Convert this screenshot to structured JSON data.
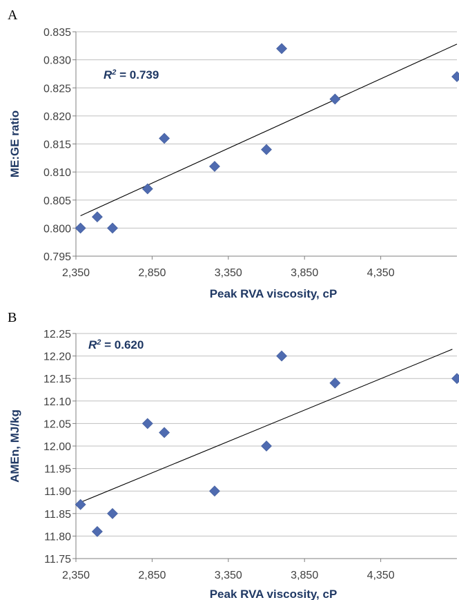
{
  "chart_data": [
    {
      "type": "scatter",
      "panel_label": "A",
      "xlabel": "Peak RVA viscosity, cP",
      "ylabel": "ME:GE ratio",
      "annotation": {
        "prefix": "R",
        "sup": "2",
        "value": " = 0.739"
      },
      "xlim": [
        2350,
        4850
      ],
      "ylim": [
        0.795,
        0.835
      ],
      "xticks": [
        2350,
        2850,
        3350,
        3850,
        4350
      ],
      "xtick_labels": [
        "2,350",
        "2,850",
        "3,350",
        "3,850",
        "4,350"
      ],
      "yticks": [
        0.795,
        0.8,
        0.805,
        0.81,
        0.815,
        0.82,
        0.825,
        0.83,
        0.835
      ],
      "ytick_labels": [
        "0.795",
        "0.800",
        "0.805",
        "0.810",
        "0.815",
        "0.820",
        "0.825",
        "0.830",
        "0.835"
      ],
      "grid": true,
      "points": [
        {
          "x": 2380,
          "y": 0.8
        },
        {
          "x": 2490,
          "y": 0.802
        },
        {
          "x": 2590,
          "y": 0.8
        },
        {
          "x": 2820,
          "y": 0.807
        },
        {
          "x": 2930,
          "y": 0.816
        },
        {
          "x": 3260,
          "y": 0.811
        },
        {
          "x": 3600,
          "y": 0.814
        },
        {
          "x": 3700,
          "y": 0.832
        },
        {
          "x": 4050,
          "y": 0.823
        },
        {
          "x": 4850,
          "y": 0.827
        }
      ],
      "trendline": {
        "x": [
          2380,
          4850
        ],
        "y": [
          0.8022,
          0.8328
        ]
      }
    },
    {
      "type": "scatter",
      "panel_label": "B",
      "xlabel": "Peak RVA viscosity, cP",
      "ylabel": "AMEn, MJ/kg",
      "annotation": {
        "prefix": "R",
        "sup": "2",
        "value": " = 0.620"
      },
      "xlim": [
        2350,
        4850
      ],
      "ylim": [
        11.75,
        12.25
      ],
      "xticks": [
        2350,
        2850,
        3350,
        3850,
        4350
      ],
      "xtick_labels": [
        "2,350",
        "2,850",
        "3,350",
        "3,850",
        "4,350"
      ],
      "yticks": [
        11.75,
        11.8,
        11.85,
        11.9,
        11.95,
        12.0,
        12.05,
        12.1,
        12.15,
        12.2,
        12.25
      ],
      "ytick_labels": [
        "11.75",
        "11.80",
        "11.85",
        "11.90",
        "11.95",
        "12.00",
        "12.05",
        "12.10",
        "12.15",
        "12.20",
        "12.25"
      ],
      "grid": true,
      "points": [
        {
          "x": 2380,
          "y": 11.87
        },
        {
          "x": 2490,
          "y": 11.81
        },
        {
          "x": 2590,
          "y": 11.85
        },
        {
          "x": 2820,
          "y": 12.05
        },
        {
          "x": 2930,
          "y": 12.03
        },
        {
          "x": 3260,
          "y": 11.9
        },
        {
          "x": 3600,
          "y": 12.0
        },
        {
          "x": 3700,
          "y": 12.2
        },
        {
          "x": 4050,
          "y": 12.14
        },
        {
          "x": 4850,
          "y": 12.15
        }
      ],
      "trendline": {
        "x": [
          2380,
          4820
        ],
        "y": [
          11.875,
          12.215
        ]
      }
    }
  ]
}
